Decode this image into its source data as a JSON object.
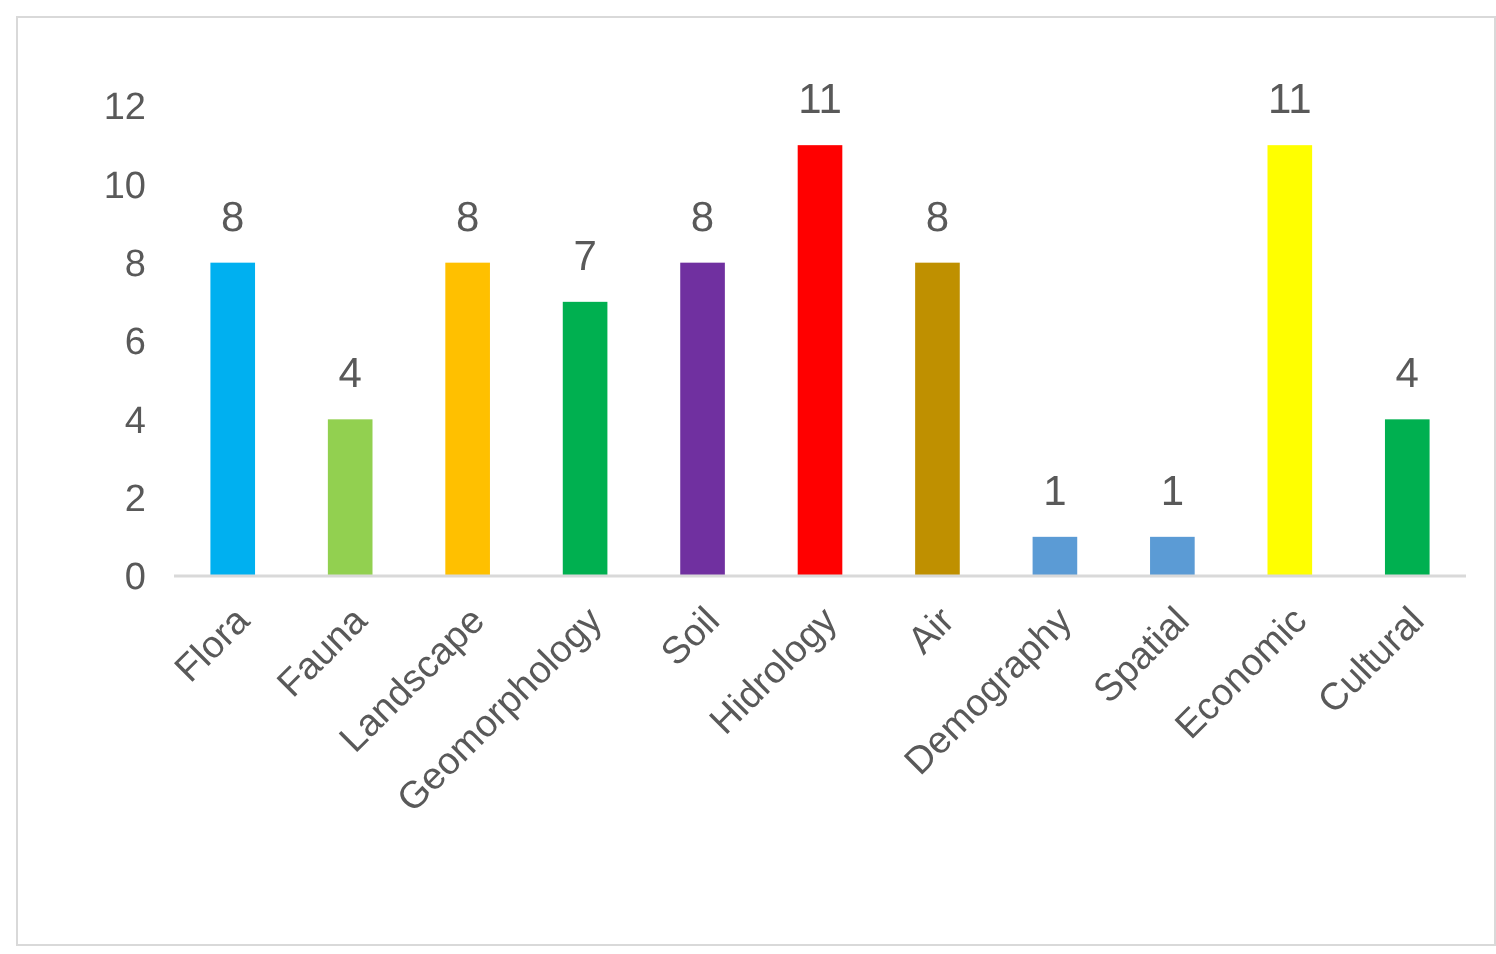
{
  "chart_data": {
    "type": "bar",
    "categories": [
      "Flora",
      "Fauna",
      "Landscape",
      "Geomorphology",
      "Soil",
      "Hidrology",
      "Air",
      "Demography",
      "Spatial",
      "Economic",
      "Cultural"
    ],
    "values": [
      8,
      4,
      8,
      7,
      8,
      11,
      8,
      1,
      1,
      11,
      4
    ],
    "colors": [
      "#00b0f0",
      "#92d050",
      "#ffc000",
      "#00b050",
      "#7030a0",
      "#ff0000",
      "#bf9000",
      "#5b9bd5",
      "#5b9bd5",
      "#ffff00",
      "#00b050"
    ],
    "ylim": [
      0,
      12
    ],
    "yticks": [
      0,
      2,
      4,
      6,
      8,
      10,
      12
    ],
    "data_labels": true
  }
}
